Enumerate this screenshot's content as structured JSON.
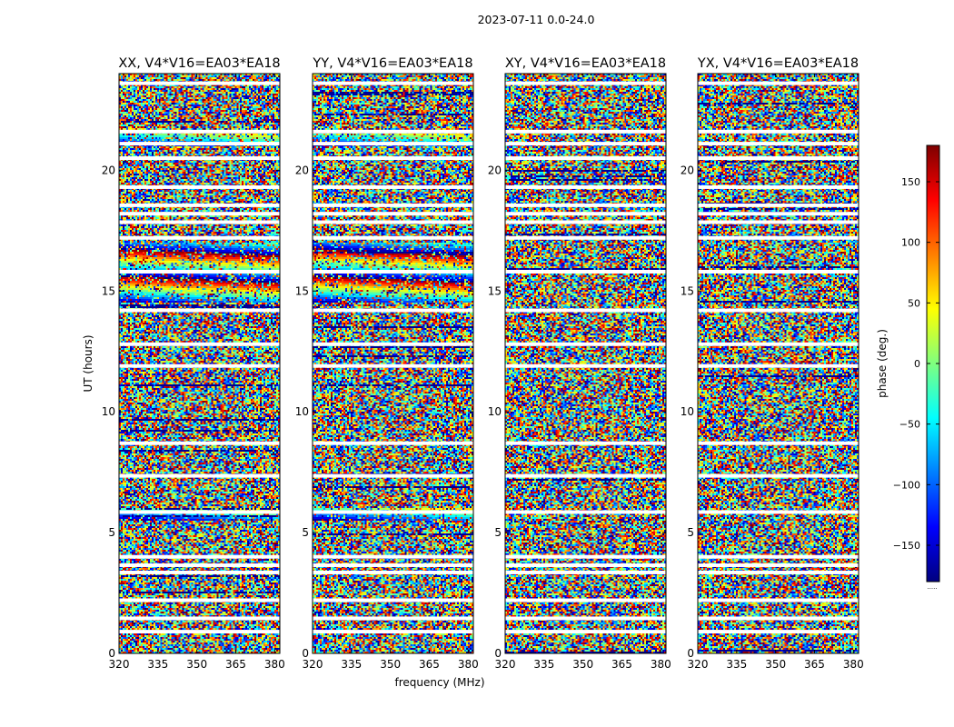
{
  "chart_data": {
    "type": "heatmap",
    "title": "2023-07-11 0.0-24.0",
    "xlabel": "frequency (MHz)",
    "ylabel": "UT (hours)",
    "xlim": [
      320,
      382
    ],
    "ylim": [
      0,
      24
    ],
    "xticks": [
      320,
      335,
      350,
      365,
      380
    ],
    "yticks": [
      0,
      5,
      10,
      15,
      20
    ],
    "panels": [
      {
        "title": "XX, V4*V16=EA03*EA18",
        "id": "xx"
      },
      {
        "title": "YY, V4*V16=EA03*EA18",
        "id": "yy"
      },
      {
        "title": "XY, V4*V16=EA03*EA18",
        "id": "xy"
      },
      {
        "title": "YX, V4*V16=EA03*EA18",
        "id": "yx"
      }
    ],
    "flagged_ut_hours": [
      0.9,
      1.45,
      2.2,
      3.35,
      3.65,
      4.0,
      5.85,
      7.35,
      8.7,
      11.9,
      12.8,
      14.2,
      15.8,
      17.2,
      17.85,
      18.2,
      18.55,
      19.3,
      20.5,
      21.1,
      21.6,
      23.6
    ],
    "coherent_features": [
      {
        "panels": [
          "xx",
          "yy"
        ],
        "ut_range": [
          14.5,
          17.0
        ],
        "description": "phase wrapping"
      },
      {
        "panels": [
          "xx",
          "yy"
        ],
        "ut_range": [
          5.5,
          6.0
        ],
        "description": "coherent band"
      },
      {
        "panels": [
          "xx",
          "yy"
        ],
        "ut_range": [
          21.0,
          21.5
        ],
        "description": "coherent band"
      }
    ],
    "colorbar": {
      "label": "phase (deg.)",
      "range": [
        -180,
        180
      ],
      "ticks": [
        -150,
        -100,
        -50,
        0,
        50,
        100,
        150
      ],
      "colormap": "jet",
      "footer": "....."
    }
  },
  "colors": {
    "jet": [
      "#00007f",
      "#0000ff",
      "#007fff",
      "#00ffff",
      "#7fff7f",
      "#ffff00",
      "#ff7f00",
      "#ff0000",
      "#7f0000"
    ]
  }
}
